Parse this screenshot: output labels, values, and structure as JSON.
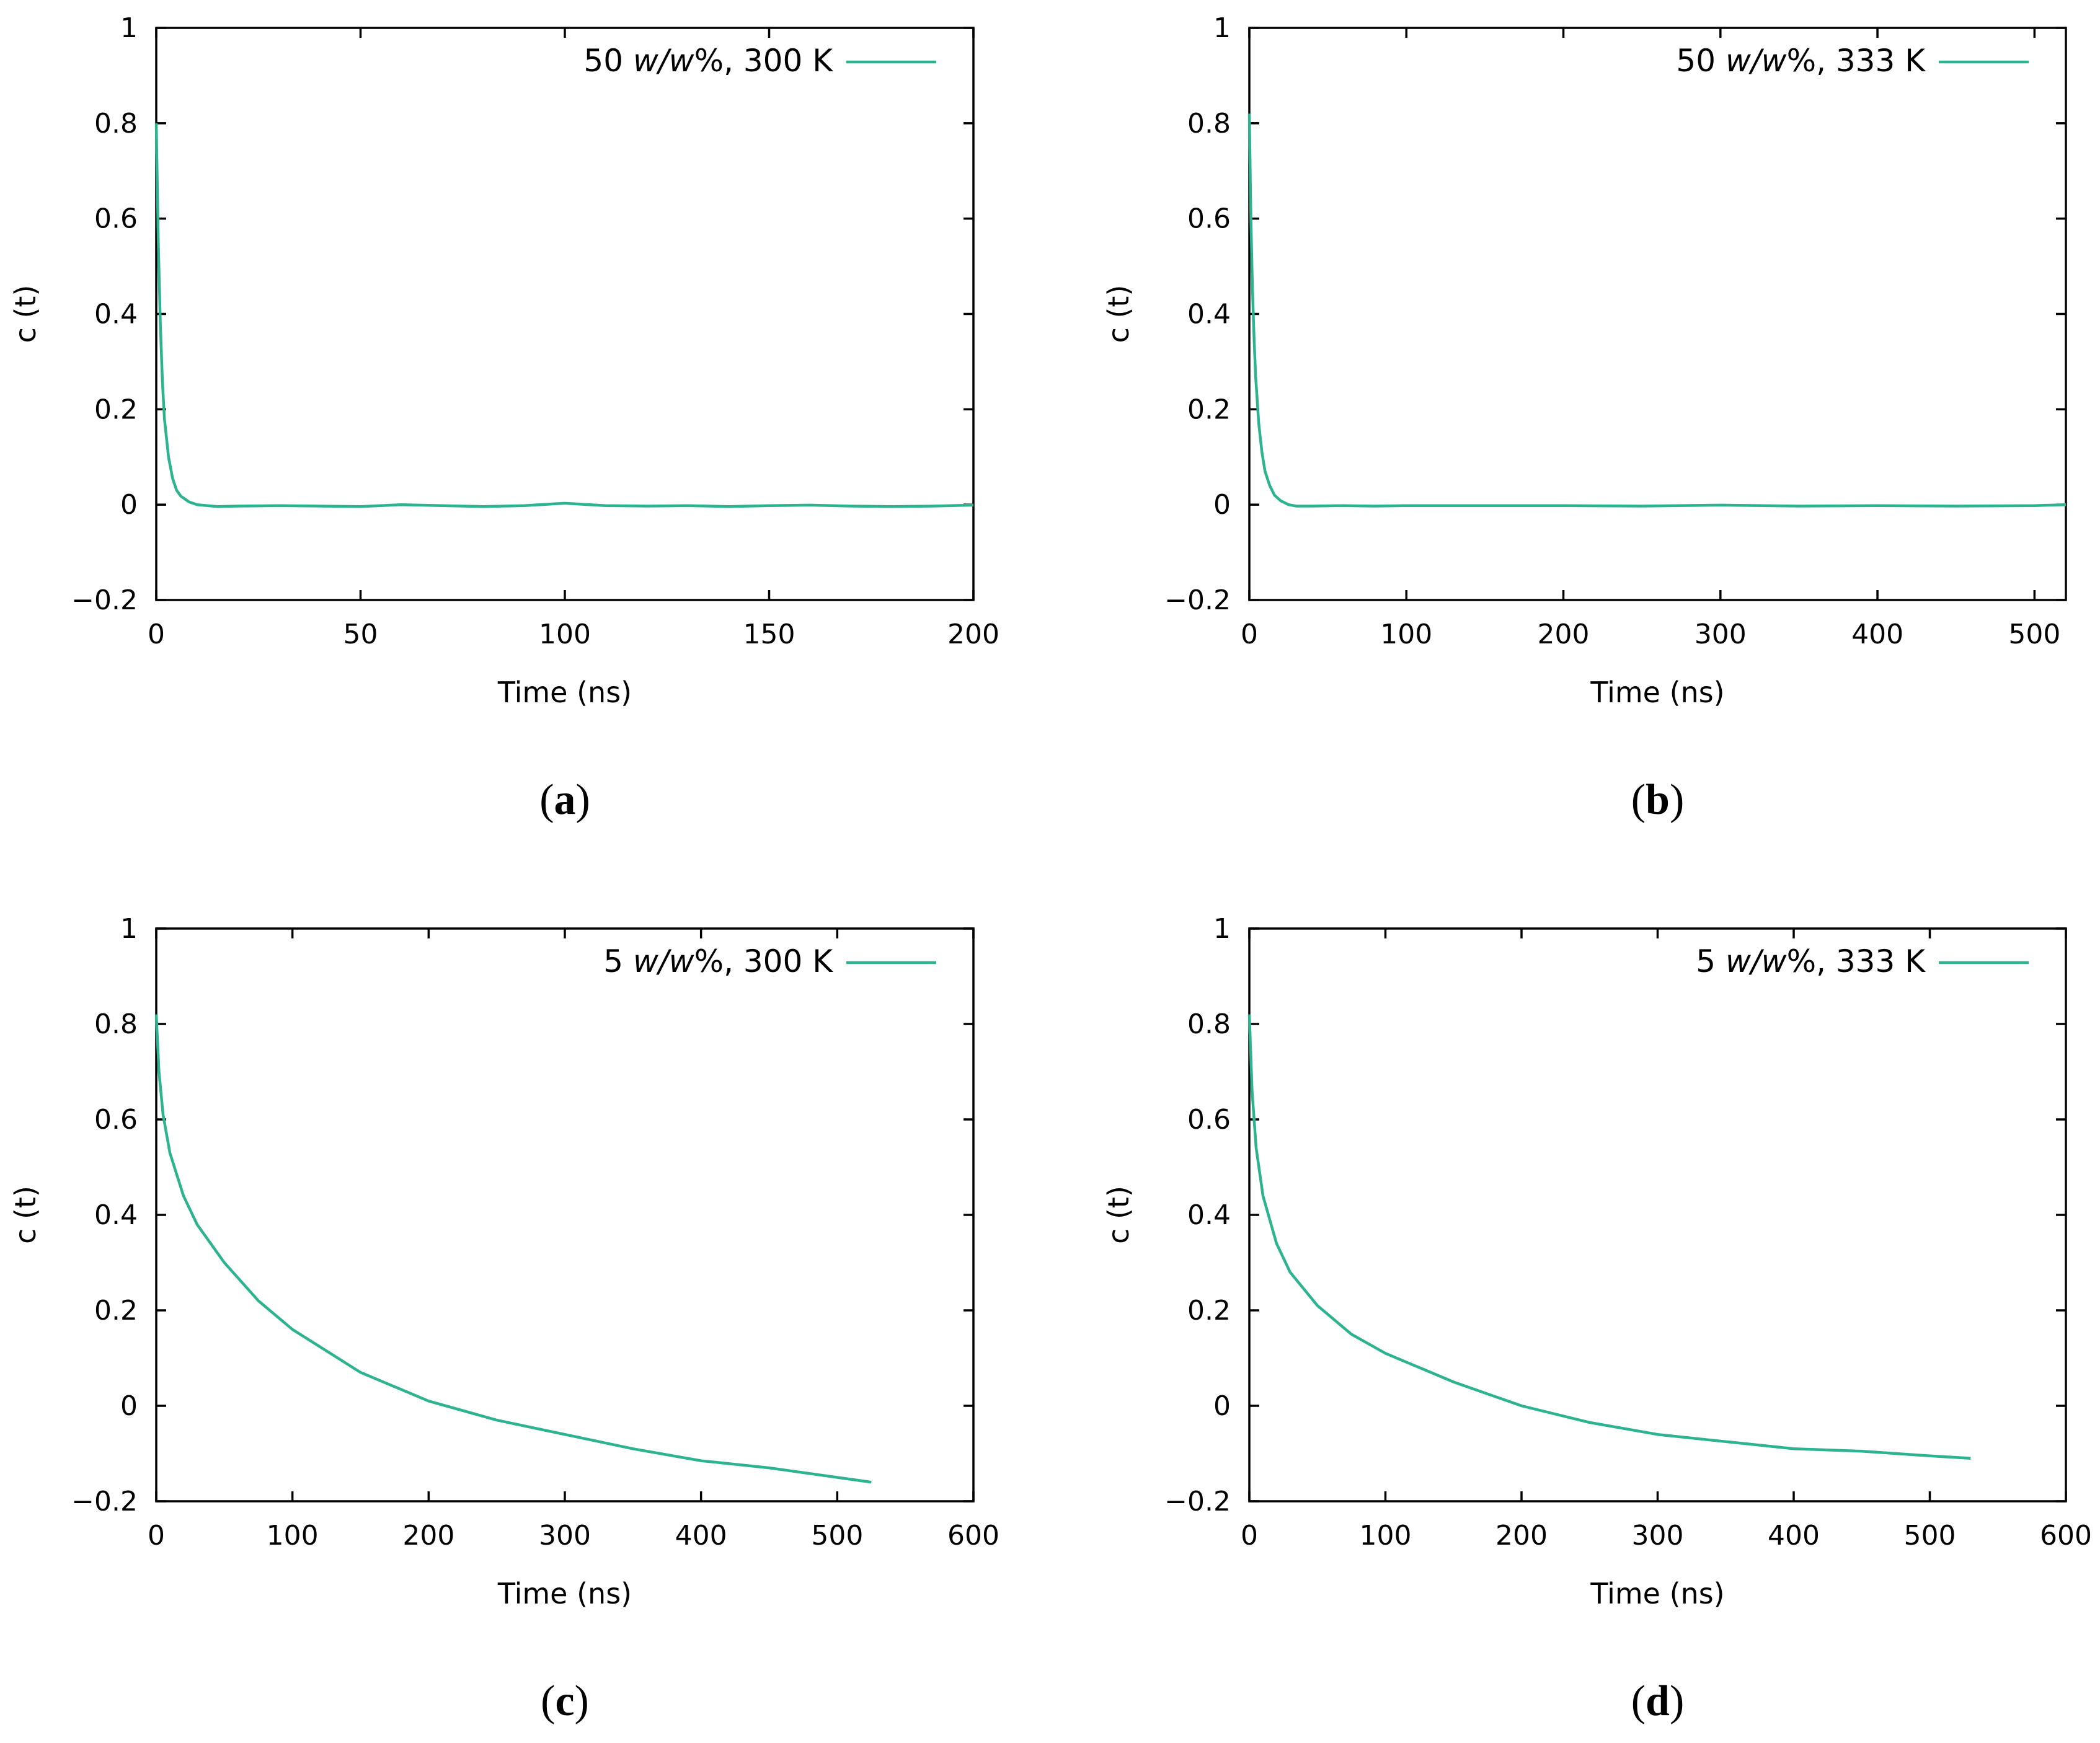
{
  "series_color": "#2db38f",
  "chart_data": [
    {
      "type": "line",
      "panel_label": "a",
      "xlabel": "Time (ns)",
      "ylabel": "c (t)",
      "xlim": [
        0,
        200
      ],
      "ylim": [
        -0.2,
        1
      ],
      "xticks": [
        "0",
        "50",
        "100",
        "150",
        "200"
      ],
      "yticks": [
        "1",
        "0.8",
        "0.6",
        "0.4",
        "0.2",
        "0",
        "−0.2"
      ],
      "legend": {
        "parts": [
          "50 ",
          "w/w",
          "%, 300 K"
        ],
        "position": "top-right"
      },
      "series": [
        {
          "name": "50 w/w%, 300 K",
          "x": [
            0,
            0.5,
            1,
            1.5,
            2,
            3,
            4,
            5,
            6,
            8,
            10,
            15,
            20,
            30,
            40,
            50,
            60,
            70,
            80,
            90,
            100,
            110,
            120,
            130,
            140,
            150,
            160,
            170,
            180,
            190,
            200
          ],
          "y": [
            0.8,
            0.55,
            0.38,
            0.26,
            0.18,
            0.1,
            0.055,
            0.03,
            0.018,
            0.006,
            0.0,
            -0.004,
            -0.003,
            -0.002,
            -0.003,
            -0.004,
            0.0,
            -0.002,
            -0.004,
            -0.002,
            0.003,
            -0.002,
            -0.003,
            -0.002,
            -0.004,
            -0.002,
            -0.001,
            -0.003,
            -0.004,
            -0.003,
            -0.001
          ]
        }
      ]
    },
    {
      "type": "line",
      "panel_label": "b",
      "xlabel": "Time (ns)",
      "ylabel": "c (t)",
      "xlim": [
        0,
        520
      ],
      "ylim": [
        -0.2,
        1
      ],
      "xticks": [
        "0",
        "100",
        "200",
        "300",
        "400",
        "500"
      ],
      "yticks": [
        "1",
        "0.8",
        "0.6",
        "0.4",
        "0.2",
        "0",
        "−0.2"
      ],
      "legend": {
        "parts": [
          "50 ",
          "w/w",
          "%, 333 K"
        ],
        "position": "top-right"
      },
      "series": [
        {
          "name": "50 w/w%, 333 K",
          "x": [
            0,
            1,
            2,
            3,
            4,
            6,
            8,
            10,
            13,
            16,
            20,
            25,
            30,
            40,
            60,
            80,
            100,
            150,
            200,
            250,
            300,
            350,
            400,
            450,
            500,
            520
          ],
          "y": [
            0.82,
            0.6,
            0.45,
            0.35,
            0.27,
            0.17,
            0.11,
            0.07,
            0.04,
            0.02,
            0.008,
            0.0,
            -0.003,
            -0.003,
            -0.002,
            -0.003,
            -0.002,
            -0.002,
            -0.002,
            -0.003,
            -0.001,
            -0.003,
            -0.002,
            -0.003,
            -0.002,
            0.0
          ]
        }
      ]
    },
    {
      "type": "line",
      "panel_label": "c",
      "xlabel": "Time (ns)",
      "ylabel": "c (t)",
      "xlim": [
        0,
        600
      ],
      "ylim": [
        -0.2,
        1
      ],
      "xticks": [
        "0",
        "100",
        "200",
        "300",
        "400",
        "500",
        "600"
      ],
      "yticks": [
        "1",
        "0.8",
        "0.6",
        "0.4",
        "0.2",
        "0",
        "−0.2"
      ],
      "legend": {
        "parts": [
          "5 ",
          "w/w",
          "%, 300 K"
        ],
        "position": "top-right"
      },
      "series": [
        {
          "name": "5 w/w%, 300 K",
          "x": [
            0,
            2,
            5,
            10,
            20,
            30,
            50,
            75,
            100,
            150,
            200,
            250,
            300,
            350,
            400,
            450,
            500,
            525
          ],
          "y": [
            0.82,
            0.7,
            0.61,
            0.53,
            0.44,
            0.38,
            0.3,
            0.22,
            0.16,
            0.07,
            0.01,
            -0.03,
            -0.06,
            -0.09,
            -0.115,
            -0.13,
            -0.15,
            -0.16
          ]
        }
      ]
    },
    {
      "type": "line",
      "panel_label": "d",
      "xlabel": "Time (ns)",
      "ylabel": "c (t)",
      "xlim": [
        0,
        600
      ],
      "ylim": [
        -0.2,
        1
      ],
      "xticks": [
        "0",
        "100",
        "200",
        "300",
        "400",
        "500",
        "600"
      ],
      "yticks": [
        "1",
        "0.8",
        "0.6",
        "0.4",
        "0.2",
        "0",
        "−0.2"
      ],
      "legend": {
        "parts": [
          "5 ",
          "w/w",
          "%, 333 K"
        ],
        "position": "top-right"
      },
      "series": [
        {
          "name": "5 w/w%, 333 K",
          "x": [
            0,
            2,
            5,
            10,
            20,
            30,
            50,
            75,
            100,
            150,
            200,
            250,
            300,
            350,
            400,
            450,
            500,
            530
          ],
          "y": [
            0.82,
            0.66,
            0.54,
            0.44,
            0.34,
            0.28,
            0.21,
            0.15,
            0.11,
            0.05,
            0.0,
            -0.035,
            -0.06,
            -0.075,
            -0.09,
            -0.095,
            -0.105,
            -0.11
          ]
        }
      ]
    }
  ]
}
